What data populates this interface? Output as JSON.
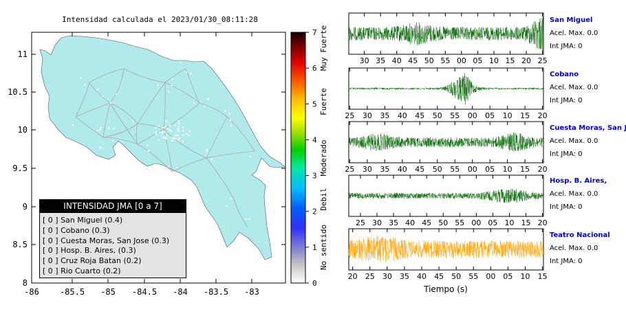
{
  "map": {
    "title": "Intensidad calculada el 2023/01/30_08:11:28",
    "lon_ticks": [
      "-86",
      "-85.5",
      "-85",
      "-84.5",
      "-84",
      "-83.5",
      "-83"
    ],
    "lat_ticks": [
      "11",
      "10.5",
      "10",
      "9.5",
      "9",
      "8.5",
      "8"
    ],
    "land_color": "#b0eaea",
    "road_color": "#a8a8a8"
  },
  "colorbar": {
    "ticks": [
      "0",
      "1",
      "2",
      "3",
      "4",
      "5",
      "6",
      "7"
    ],
    "labels": [
      "No sentido",
      "Debil",
      "Moderado",
      "Fuerte",
      "Muy Fuerte"
    ]
  },
  "legend": {
    "title": "INTENSIDAD JMA [0 a 7]",
    "items": [
      "[ 0 ]  San Miguel (0.4)",
      "[ 0 ]  Cobano (0.3)",
      "[ 0 ]  Cuesta Moras, San Jose (0.3)",
      "[ 0 ]  Hosp. B. Aires, (0.3)",
      "[ 0 ]  Cruz Roja Batan (0.2)",
      "[ 0 ]  Rio Cuarto (0.2)"
    ]
  },
  "waveforms": {
    "xlabel": "Tiempo (s)",
    "stations": [
      {
        "name": "San Miguel",
        "accel": "Acel. Max. 0.0",
        "int": "Int JMA: 0",
        "ticks": [
          "30",
          "35",
          "40",
          "45",
          "50",
          "55",
          "00",
          "05",
          "10",
          "15",
          "20",
          "25"
        ],
        "color": "#006400"
      },
      {
        "name": "Cobano",
        "accel": "Acel. Max. 0.0",
        "int": "Int JMA: 0",
        "ticks": [
          "25",
          "30",
          "35",
          "40",
          "45",
          "50",
          "55",
          "00",
          "05",
          "10",
          "15",
          "20"
        ],
        "color": "#006400"
      },
      {
        "name": "Cuesta Moras, San Jose",
        "accel": "Acel. Max. 0.0",
        "int": "Int JMA: 0",
        "ticks": [
          "25",
          "30",
          "35",
          "40",
          "45",
          "50",
          "55",
          "00",
          "05",
          "10",
          "15",
          "20"
        ],
        "color": "#006400"
      },
      {
        "name": "Hosp. B. Aires,",
        "accel": "Acel. Max. 0.0",
        "int": "Int JMA: 0",
        "ticks": [
          "25",
          "30",
          "35",
          "40",
          "45",
          "50",
          "55",
          "00",
          "05",
          "10",
          "15",
          "20"
        ],
        "color": "#006400"
      },
      {
        "name": "Teatro Nacional",
        "accel": "Acel. Max. 0.0",
        "int": "Int JMA: 0",
        "ticks": [
          "20",
          "25",
          "30",
          "35",
          "40",
          "45",
          "50",
          "55",
          "00",
          "05",
          "10",
          "15"
        ],
        "color": "#ffa500"
      }
    ]
  }
}
